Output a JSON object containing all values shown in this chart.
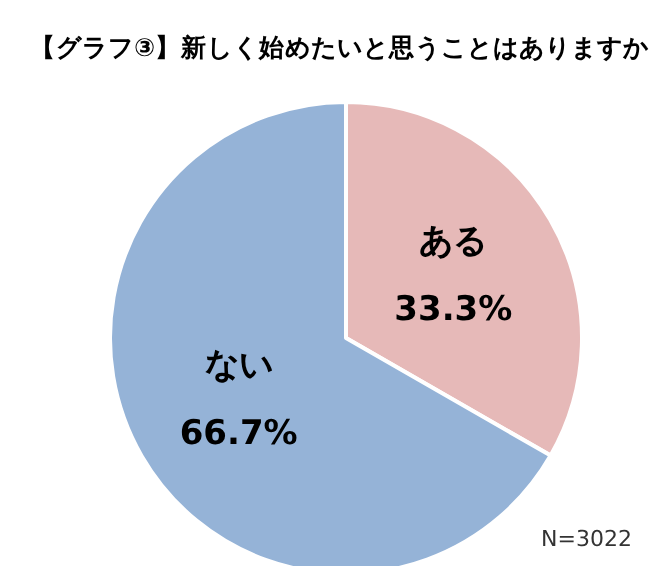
{
  "chart_data": {
    "type": "pie",
    "title": "【グラフ③】新しく始めたいと思うことはありますか",
    "categories": [
      "ある",
      "ない"
    ],
    "values": [
      33.3,
      66.7
    ],
    "value_labels": [
      "33.3%",
      "66.7%"
    ],
    "colors": [
      "#e6b9b8",
      "#95b3d7"
    ],
    "annotations": [
      "N=3022"
    ],
    "legend": false
  }
}
